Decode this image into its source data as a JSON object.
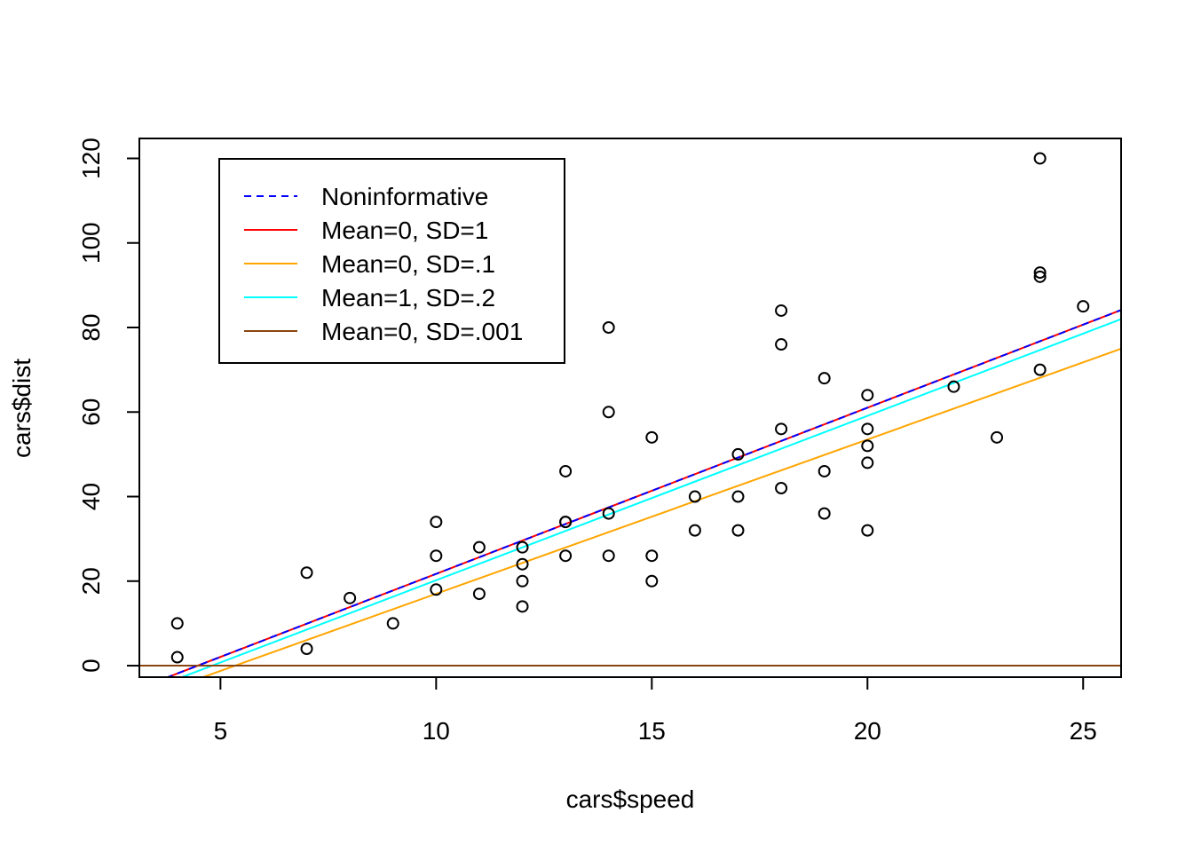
{
  "chart_data": {
    "type": "scatter",
    "title": "",
    "xlabel": "cars$speed",
    "ylabel": "cars$dist",
    "xlim": [
      3.12,
      25.88
    ],
    "ylim": [
      -2.72,
      124.72
    ],
    "x_ticks": [
      5,
      10,
      15,
      20,
      25
    ],
    "y_ticks": [
      0,
      20,
      40,
      60,
      80,
      100,
      120
    ],
    "grid": false,
    "legend_position": "top-left",
    "points": [
      {
        "x": 4,
        "y": 2
      },
      {
        "x": 4,
        "y": 10
      },
      {
        "x": 7,
        "y": 4
      },
      {
        "x": 7,
        "y": 22
      },
      {
        "x": 8,
        "y": 16
      },
      {
        "x": 9,
        "y": 10
      },
      {
        "x": 10,
        "y": 18
      },
      {
        "x": 10,
        "y": 26
      },
      {
        "x": 10,
        "y": 34
      },
      {
        "x": 11,
        "y": 17
      },
      {
        "x": 11,
        "y": 28
      },
      {
        "x": 12,
        "y": 14
      },
      {
        "x": 12,
        "y": 20
      },
      {
        "x": 12,
        "y": 24
      },
      {
        "x": 12,
        "y": 28
      },
      {
        "x": 13,
        "y": 26
      },
      {
        "x": 13,
        "y": 34
      },
      {
        "x": 13,
        "y": 34
      },
      {
        "x": 13,
        "y": 46
      },
      {
        "x": 14,
        "y": 26
      },
      {
        "x": 14,
        "y": 36
      },
      {
        "x": 14,
        "y": 60
      },
      {
        "x": 14,
        "y": 80
      },
      {
        "x": 15,
        "y": 20
      },
      {
        "x": 15,
        "y": 26
      },
      {
        "x": 15,
        "y": 54
      },
      {
        "x": 16,
        "y": 32
      },
      {
        "x": 16,
        "y": 40
      },
      {
        "x": 17,
        "y": 32
      },
      {
        "x": 17,
        "y": 40
      },
      {
        "x": 17,
        "y": 50
      },
      {
        "x": 18,
        "y": 42
      },
      {
        "x": 18,
        "y": 56
      },
      {
        "x": 18,
        "y": 76
      },
      {
        "x": 18,
        "y": 84
      },
      {
        "x": 19,
        "y": 36
      },
      {
        "x": 19,
        "y": 46
      },
      {
        "x": 19,
        "y": 68
      },
      {
        "x": 20,
        "y": 32
      },
      {
        "x": 20,
        "y": 48
      },
      {
        "x": 20,
        "y": 52
      },
      {
        "x": 20,
        "y": 56
      },
      {
        "x": 20,
        "y": 64
      },
      {
        "x": 22,
        "y": 66
      },
      {
        "x": 23,
        "y": 54
      },
      {
        "x": 24,
        "y": 70
      },
      {
        "x": 24,
        "y": 92
      },
      {
        "x": 24,
        "y": 93
      },
      {
        "x": 24,
        "y": 120
      },
      {
        "x": 25,
        "y": 85
      }
    ],
    "series": [
      {
        "name": "Noninformative",
        "intercept": -17.58,
        "slope": 3.93,
        "color": "#0000FF",
        "dash": true
      },
      {
        "name": "Mean=0, SD=1",
        "intercept": -17.58,
        "slope": 3.93,
        "color": "#FF0000",
        "dash": false
      },
      {
        "name": "Mean=0, SD=.1",
        "intercept": -19.5,
        "slope": 3.65,
        "color": "#FFA500",
        "dash": false
      },
      {
        "name": "Mean=1, SD=.2",
        "intercept": -18.7,
        "slope": 3.89,
        "color": "#00FFFF",
        "dash": false
      },
      {
        "name": "Mean=0, SD=.001",
        "intercept": 0.0,
        "slope": 0.0,
        "color": "#8B4513",
        "dash": false
      }
    ]
  }
}
